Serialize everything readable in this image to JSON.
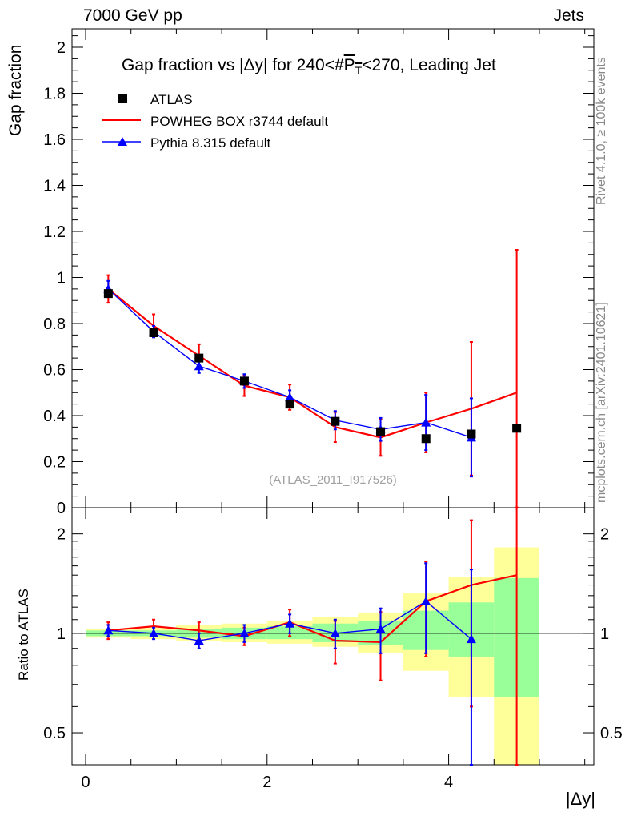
{
  "header": {
    "left": "7000 GeV pp",
    "right": "Jets"
  },
  "side_text": {
    "rivet": "Rivet 4.1.0, ≥ 100k events",
    "mcplots": "mcplots.cern.ch [arXiv:2401.10621]"
  },
  "chart_data": [
    {
      "type": "scatter",
      "title": "Gap fraction vs |Δy| for 240<#P̅_T<270, Leading Jet",
      "title_parts": {
        "pre": "Gap fraction vs |Δy| for 240<#",
        "P": "P",
        "T": "T",
        "post": "<270, Leading Jet"
      },
      "xlabel": "|Δy|",
      "ylabel": "Gap fraction",
      "xlim": [
        -0.15,
        5.6
      ],
      "ylim": [
        0,
        2.08
      ],
      "yticks": [
        "0",
        "0.2",
        "0.4",
        "0.6",
        "0.8",
        "1",
        "1.2",
        "1.4",
        "1.6",
        "1.8",
        "2"
      ],
      "ytick_values": [
        0,
        0.2,
        0.4,
        0.6,
        0.8,
        1.0,
        1.2,
        1.4,
        1.6,
        1.8,
        2.0
      ],
      "watermark": "(ATLAS_2011_I917526)",
      "legend": [
        "ATLAS",
        "POWHEG BOX r3744 default",
        "Pythia 8.315 default"
      ],
      "x": [
        0.25,
        0.75,
        1.25,
        1.75,
        2.25,
        2.75,
        3.25,
        3.75,
        4.25,
        4.75
      ],
      "series": [
        {
          "name": "ATLAS",
          "color": "#000000",
          "values": [
            0.93,
            0.76,
            0.65,
            0.55,
            0.45,
            0.375,
            0.33,
            0.3,
            0.32,
            0.345
          ]
        },
        {
          "name": "POWHEG BOX r3744 default",
          "color": "#ff0000",
          "values": [
            0.95,
            0.79,
            0.66,
            0.53,
            0.48,
            0.35,
            0.305,
            0.37,
            0.43,
            0.5
          ],
          "err": [
            0.06,
            0.05,
            0.05,
            0.045,
            0.055,
            0.065,
            0.08,
            0.13,
            0.29,
            0.62
          ]
        },
        {
          "name": "Pythia 8.315 default",
          "color": "#0000ff",
          "values": [
            0.95,
            0.765,
            0.615,
            0.55,
            0.48,
            0.38,
            0.34,
            0.37,
            0.305
          ],
          "err": [
            0.035,
            0.025,
            0.03,
            0.03,
            0.03,
            0.04,
            0.05,
            0.12,
            0.17
          ]
        }
      ]
    },
    {
      "type": "scatter",
      "title": "",
      "xlabel": "|Δy|",
      "ylabel": "Ratio to ATLAS",
      "xlim": [
        -0.15,
        5.6
      ],
      "ylim": [
        0.4,
        2.4
      ],
      "yscale": "log",
      "yticks": [
        "0.5",
        "1",
        "2"
      ],
      "ytick_values": [
        0.5,
        1,
        2
      ],
      "xticks": [
        "0",
        "2",
        "4"
      ],
      "xtick_values": [
        0,
        2,
        4
      ],
      "bins": [
        [
          0,
          0.5
        ],
        [
          0.5,
          1
        ],
        [
          1,
          1.5
        ],
        [
          1.5,
          2
        ],
        [
          2,
          2.5
        ],
        [
          2.5,
          3
        ],
        [
          3,
          3.5
        ],
        [
          3.5,
          4
        ],
        [
          4,
          4.5
        ],
        [
          4.5,
          5
        ]
      ],
      "band_yellow": [
        [
          0.97,
          1.03
        ],
        [
          0.96,
          1.04
        ],
        [
          0.95,
          1.06
        ],
        [
          0.94,
          1.07
        ],
        [
          0.93,
          1.09
        ],
        [
          0.91,
          1.12
        ],
        [
          0.87,
          1.15
        ],
        [
          0.77,
          1.32
        ],
        [
          0.64,
          1.48
        ],
        [
          0.35,
          1.82
        ]
      ],
      "band_green": [
        [
          0.98,
          1.02
        ],
        [
          0.98,
          1.02
        ],
        [
          0.97,
          1.03
        ],
        [
          0.96,
          1.04
        ],
        [
          0.96,
          1.05
        ],
        [
          0.94,
          1.07
        ],
        [
          0.92,
          1.09
        ],
        [
          0.89,
          1.17
        ],
        [
          0.85,
          1.24
        ],
        [
          0.64,
          1.47
        ]
      ],
      "series": [
        {
          "name": "POWHEG BOX r3744 default",
          "color": "#ff0000",
          "values": [
            1.02,
            1.05,
            1.02,
            0.98,
            1.08,
            0.95,
            0.94,
            1.25,
            1.4,
            1.5
          ],
          "err": [
            0.06,
            0.05,
            0.06,
            0.06,
            0.1,
            0.14,
            0.22,
            0.4,
            0.8,
            1.5
          ]
        },
        {
          "name": "Pythia 8.315 default",
          "color": "#0000ff",
          "values": [
            1.02,
            1.0,
            0.95,
            1.0,
            1.07,
            1.0,
            1.03,
            1.25,
            0.96
          ],
          "err": [
            0.04,
            0.04,
            0.05,
            0.06,
            0.07,
            0.1,
            0.16,
            0.38,
            0.6
          ]
        }
      ]
    }
  ]
}
